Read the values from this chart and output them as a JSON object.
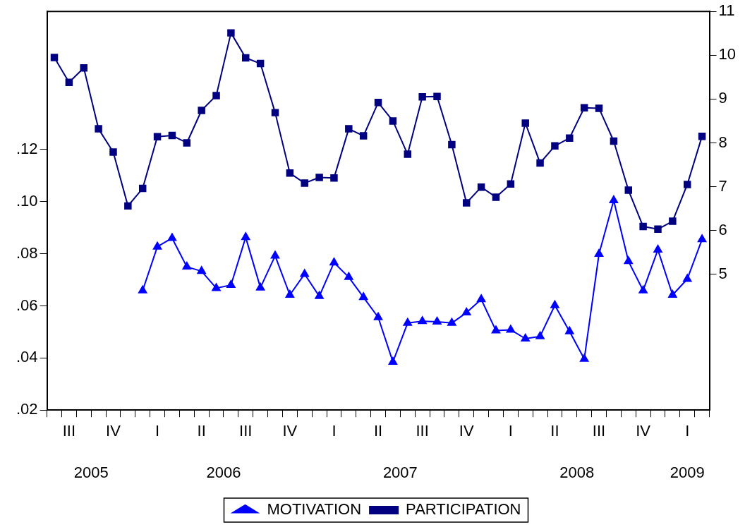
{
  "chart_data": {
    "type": "line",
    "categories": [
      null,
      "III",
      null,
      null,
      "IV",
      null,
      null,
      "I",
      null,
      null,
      "II",
      null,
      null,
      "III",
      null,
      null,
      "IV",
      null,
      null,
      "I",
      null,
      null,
      "II",
      null,
      null,
      "III",
      null,
      null,
      "IV",
      null,
      null,
      "I",
      null,
      null,
      "II",
      null,
      null,
      "III",
      null,
      null,
      "IV",
      null,
      null,
      "I",
      null
    ],
    "x2lim": [
      2005,
      2008.75
    ],
    "x2ticks": [
      {
        "value": 2005.25,
        "label": "2005"
      },
      2006,
      2007,
      2008,
      {
        "value": 2008.625,
        "label": "2009"
      }
    ],
    "series": [
      {
        "name": "MOTIVATION",
        "color": "#0000ff",
        "marker": "triangle",
        "values": [
          null,
          null,
          null,
          null,
          null,
          null,
          0.0659,
          0.0827,
          0.086,
          0.075,
          0.0733,
          0.0668,
          0.068,
          0.0863,
          0.067,
          0.0792,
          0.0642,
          0.0722,
          0.0637,
          0.0766,
          0.071,
          0.0633,
          0.0556,
          0.0385,
          0.0534,
          0.0541,
          0.0539,
          0.0534,
          0.0574,
          0.0625,
          0.0505,
          0.0508,
          0.0474,
          0.0483,
          0.0602,
          0.0502,
          0.0396,
          0.0799,
          0.1005,
          0.0771,
          0.0659,
          0.0815,
          0.0642,
          0.0703,
          0.0855
        ]
      },
      {
        "name": "PARTICIPATION",
        "color": "#000080",
        "marker": "square",
        "axis": "y2",
        "values": [
          9.95,
          9.38,
          9.71,
          8.32,
          7.79,
          6.56,
          6.96,
          8.14,
          8.17,
          8.0,
          8.74,
          9.08,
          10.51,
          9.94,
          9.81,
          8.69,
          7.31,
          7.08,
          7.21,
          7.2,
          8.32,
          8.16,
          8.92,
          8.5,
          7.74,
          9.05,
          9.06,
          7.96,
          6.63,
          6.99,
          6.76,
          7.06,
          8.45,
          7.54,
          7.93,
          8.11,
          8.8,
          8.79,
          8.04,
          6.92,
          6.09,
          6.03,
          6.21,
          7.05,
          8.15
        ]
      }
    ],
    "ylim": [
      0.02,
      0.173
    ],
    "yticks": [
      {
        "value": 0.02,
        "label": ".02"
      },
      {
        "value": 0.04,
        "label": ".04"
      },
      {
        "value": 0.06,
        "label": ".06"
      },
      {
        "value": 0.08,
        "label": ".08"
      },
      {
        "value": 0.1,
        "label": ".10"
      },
      {
        "value": 0.12,
        "label": ".12"
      }
    ],
    "y2lim": [
      1.9,
      11
    ],
    "y2ticks": [
      5,
      6,
      7,
      8,
      9,
      10,
      11
    ],
    "grid": false,
    "legend": "bottom"
  }
}
